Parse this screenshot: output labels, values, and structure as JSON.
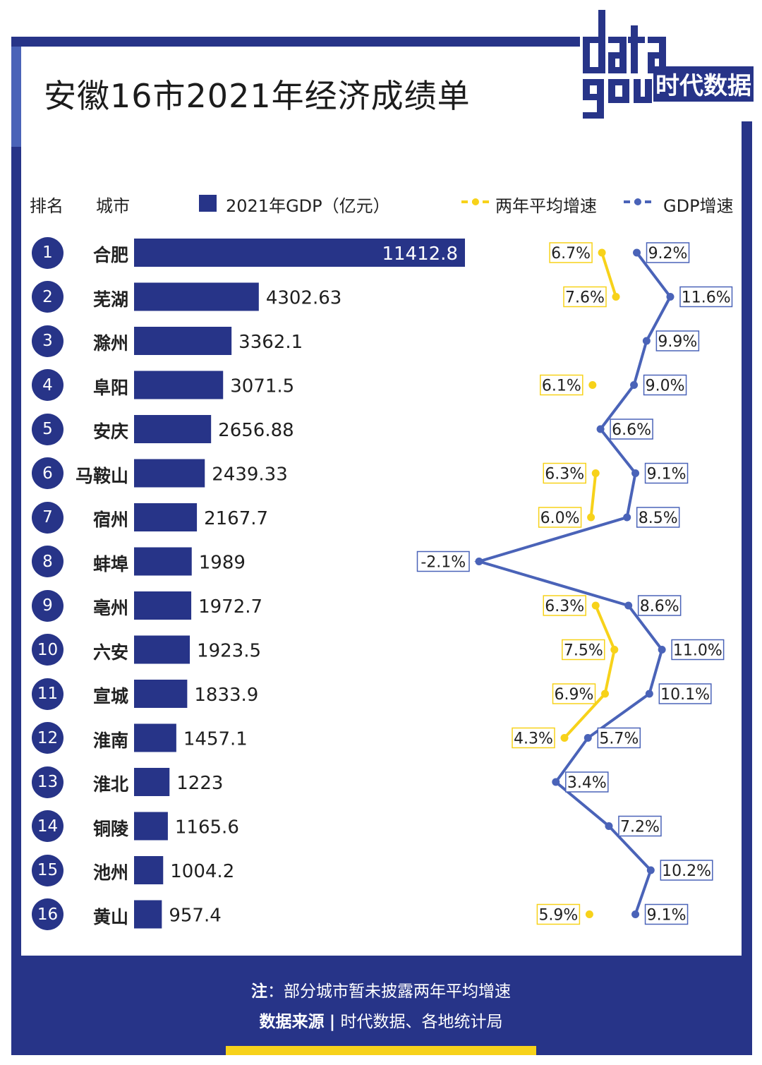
{
  "title": "安徽16市2021年经济成绩单",
  "logo": {
    "word_top": "data",
    "word_bottom": "gou",
    "brand": "时代数据"
  },
  "headers": {
    "rank": "排名",
    "city": "城市",
    "gdp_legend": "2021年GDP（亿元）",
    "avg_legend": "两年平均增速",
    "growth_legend": "GDP增速"
  },
  "colors": {
    "navy": "#273488",
    "growth_line": "#4a63b8",
    "avg_line": "#f7d21a",
    "avg_label_border": "#f7d21a",
    "growth_label_border": "#4a63b8"
  },
  "rows": [
    {
      "rank": "1",
      "city": "合肥"
    },
    {
      "rank": "2",
      "city": "芜湖"
    },
    {
      "rank": "3",
      "city": "滁州"
    },
    {
      "rank": "4",
      "city": "阜阳"
    },
    {
      "rank": "5",
      "city": "安庆"
    },
    {
      "rank": "6",
      "city": "马鞍山"
    },
    {
      "rank": "7",
      "city": "宿州"
    },
    {
      "rank": "8",
      "city": "蚌埠"
    },
    {
      "rank": "9",
      "city": "亳州"
    },
    {
      "rank": "10",
      "city": "六安"
    },
    {
      "rank": "11",
      "city": "宣城"
    },
    {
      "rank": "12",
      "city": "淮南"
    },
    {
      "rank": "13",
      "city": "淮北"
    },
    {
      "rank": "14",
      "city": "铜陵"
    },
    {
      "rank": "15",
      "city": "池州"
    },
    {
      "rank": "16",
      "city": "黄山"
    }
  ],
  "chart_data": {
    "type": "bar",
    "categories": [
      "合肥",
      "芜湖",
      "滁州",
      "阜阳",
      "安庆",
      "马鞍山",
      "宿州",
      "蚌埠",
      "亳州",
      "六安",
      "宣城",
      "淮南",
      "淮北",
      "铜陵",
      "池州",
      "黄山"
    ],
    "series": [
      {
        "name": "2021年GDP（亿元）",
        "type": "bar",
        "values": [
          11412.8,
          4302.63,
          3362.1,
          3071.5,
          2656.88,
          2439.33,
          2167.7,
          1989,
          1972.7,
          1923.5,
          1833.9,
          1457.1,
          1223,
          1165.6,
          1004.2,
          957.4
        ],
        "labels": [
          "11412.8",
          "4302.63",
          "3362.1",
          "3071.5",
          "2656.88",
          "2439.33",
          "2167.7",
          "1989",
          "1972.7",
          "1923.5",
          "1833.9",
          "1457.1",
          "1223",
          "1165.6",
          "1004.2",
          "957.4"
        ]
      },
      {
        "name": "两年平均增速",
        "type": "line",
        "values": [
          6.7,
          7.6,
          null,
          6.1,
          null,
          6.3,
          6.0,
          null,
          6.3,
          7.5,
          6.9,
          4.3,
          null,
          null,
          null,
          5.9
        ],
        "labels": [
          "6.7%",
          "7.6%",
          null,
          "6.1%",
          null,
          "6.3%",
          "6.0%",
          null,
          "6.3%",
          "7.5%",
          "6.9%",
          "4.3%",
          null,
          null,
          null,
          "5.9%"
        ]
      },
      {
        "name": "GDP增速",
        "type": "line",
        "values": [
          9.2,
          11.6,
          9.9,
          9.0,
          6.6,
          9.1,
          8.5,
          -2.1,
          8.6,
          11.0,
          10.1,
          5.7,
          3.4,
          7.2,
          10.2,
          9.1
        ],
        "labels": [
          "9.2%",
          "11.6%",
          "9.9%",
          "9.0%",
          "6.6%",
          "9.1%",
          "8.5%",
          "-2.1%",
          "8.6%",
          "11.0%",
          "10.1%",
          "5.7%",
          "3.4%",
          "7.2%",
          "10.2%",
          "9.1%"
        ]
      }
    ],
    "legend_position": "top",
    "grid": false
  },
  "footer": {
    "note_label": "注",
    "note_text": "：部分城市暂未披露两年平均增速",
    "source_label": "数据来源",
    "source_separator": "|",
    "source_text": "时代数据、各地统计局"
  }
}
